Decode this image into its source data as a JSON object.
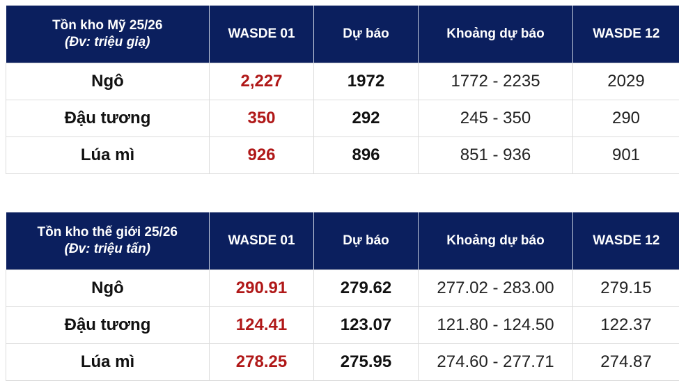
{
  "tables": [
    {
      "title": "Tồn kho Mỹ 25/26",
      "unit": "(Đv: triệu giạ)",
      "columns": [
        "WASDE 01",
        "Dự báo",
        "Khoảng dự báo",
        "WASDE 12"
      ],
      "rows": [
        {
          "name": "Ngô",
          "wasde01": "2,227",
          "forecast": "1972",
          "range": "1772 - 2235",
          "wasde12": "2029"
        },
        {
          "name": "Đậu tương",
          "wasde01": "350",
          "forecast": "292",
          "range": "245 - 350",
          "wasde12": "290"
        },
        {
          "name": "Lúa mì",
          "wasde01": "926",
          "forecast": "896",
          "range": "851 - 936",
          "wasde12": "901"
        }
      ]
    },
    {
      "title": "Tồn kho thế giới 25/26",
      "unit": "(Đv: triệu tấn)",
      "columns": [
        "WASDE 01",
        "Dự báo",
        "Khoảng dự báo",
        "WASDE 12"
      ],
      "rows": [
        {
          "name": "Ngô",
          "wasde01": "290.91",
          "forecast": "279.62",
          "range": "277.02 - 283.00",
          "wasde12": "279.15"
        },
        {
          "name": "Đậu tương",
          "wasde01": "124.41",
          "forecast": "123.07",
          "range": "121.80 - 124.50",
          "wasde12": "122.37"
        },
        {
          "name": "Lúa mì",
          "wasde01": "278.25",
          "forecast": "275.95",
          "range": "274.60 - 277.71",
          "wasde12": "274.87"
        }
      ]
    }
  ],
  "colors": {
    "header_bg": "#0b1f5e",
    "wasde01_text": "#b01818"
  }
}
